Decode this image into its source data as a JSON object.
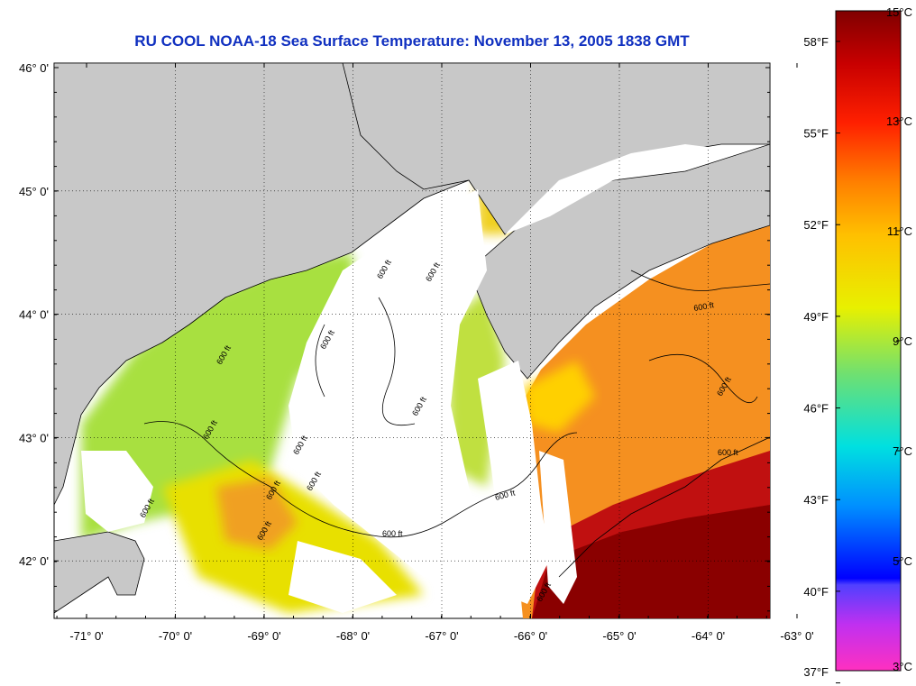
{
  "title": "RU COOL  NOAA-18  Sea Surface Temperature:  November 13, 2005 1838 GMT",
  "map": {
    "lon_range": [
      -71,
      -63
    ],
    "lat_range": [
      41.5,
      46.1
    ],
    "x_ticks": [
      "-71° 0'",
      "-70° 0'",
      "-69° 0'",
      "-68° 0'",
      "-67° 0'",
      "-66° 0'",
      "-65° 0'",
      "-64° 0'",
      "-63° 0'"
    ],
    "y_ticks": [
      "46° 0'",
      "45° 0'",
      "44° 0'",
      "43° 0'",
      "42° 0'"
    ],
    "grid": "dotted",
    "land_color": "#c8c8c8",
    "cloud_color": "#ffffff",
    "contour_label": "600 ft"
  },
  "colorbar": {
    "celsius_labels": [
      "15°C",
      "13°C",
      "11°C",
      "9°C",
      "7°C",
      "5°C",
      "3°C"
    ],
    "fahrenheit_labels": [
      "58°F",
      "55°F",
      "52°F",
      "49°F",
      "46°F",
      "43°F",
      "40°F",
      "37°F"
    ],
    "range_c": [
      3,
      15
    ],
    "colors": [
      "#ff30c0",
      "#8040ff",
      "#0000ff",
      "#00a0ff",
      "#00e0e0",
      "#60e080",
      "#e0f000",
      "#ffd000",
      "#ff8000",
      "#ff2000",
      "#c00000",
      "#800000"
    ]
  }
}
